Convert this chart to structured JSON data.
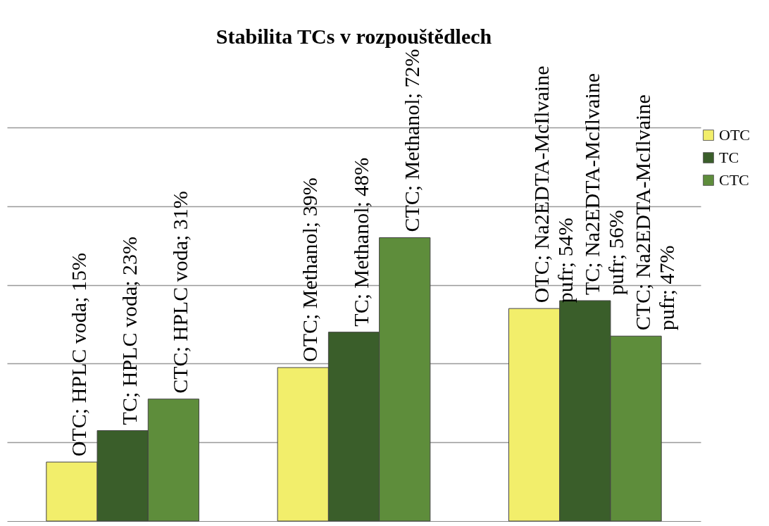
{
  "chart_data": {
    "type": "bar",
    "title": "Stabilita TCs v rozpouštědlech",
    "categories": [
      null,
      null,
      null
    ],
    "series": [
      {
        "name": "OTC",
        "color": "#f2ee6b",
        "values": [
          15,
          39,
          54
        ],
        "value_labels": [
          "OTC; HPLC voda; 15%",
          "OTC; Methanol; 39%",
          "OTC; Na2EDTA-McIlvaine pufr; 54%"
        ]
      },
      {
        "name": "TC",
        "color": "#3a5e2a",
        "values": [
          23,
          48,
          56
        ],
        "value_labels": [
          "TC; HPLC voda; 23%",
          "TC; Methanol; 48%",
          "TC; Na2EDTA-McIlvaine pufr; 56%"
        ]
      },
      {
        "name": "CTC",
        "color": "#5e8d3b",
        "values": [
          31,
          72,
          47
        ],
        "value_labels": [
          "CTC; HPLC voda; 31%",
          "CTC; Methanol; 72%",
          "CTC; Na2EDTA-McIlvaine pufr; 47%"
        ]
      }
    ],
    "ylim": [
      0,
      100
    ],
    "yticks": [
      {
        "value": 20,
        "label": null
      },
      {
        "value": 40,
        "label": null
      },
      {
        "value": 60,
        "label": null
      },
      {
        "value": 80,
        "label": null
      },
      {
        "value": 100,
        "label": null
      }
    ],
    "grid": "y",
    "legend": "right"
  }
}
